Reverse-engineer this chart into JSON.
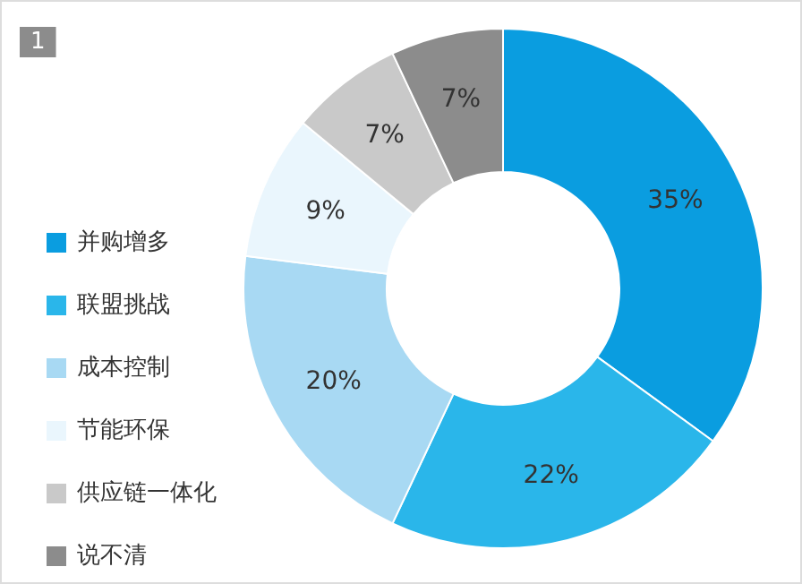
{
  "chart_data": {
    "type": "donut",
    "title": "1",
    "categories": [
      "并购增多",
      "联盟挑战",
      "成本控制",
      "节能环保",
      "供应链一体化",
      "说不清"
    ],
    "values": [
      35,
      22,
      20,
      9,
      7,
      7
    ],
    "colors": [
      "#0a9de0",
      "#2ab6ea",
      "#a8d9f3",
      "#eaf6fd",
      "#c9c9c9",
      "#8c8c8c"
    ],
    "value_labels": [
      "35%",
      "22%",
      "20%",
      "9%",
      "7%",
      "7%"
    ],
    "legend": "left"
  }
}
